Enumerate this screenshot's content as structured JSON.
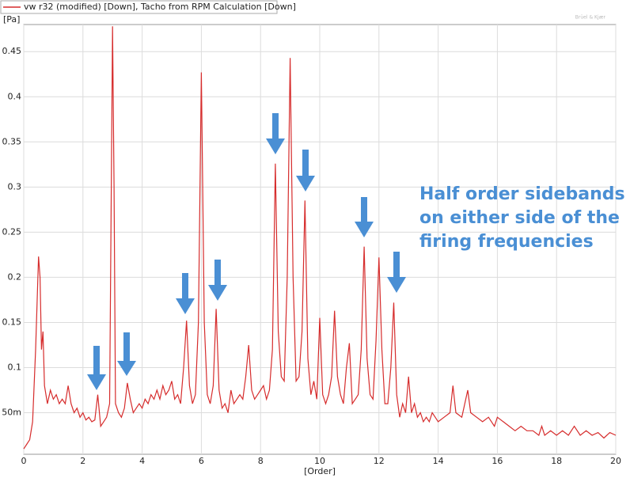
{
  "chart_data": {
    "type": "line",
    "legend_text": "vw r32 (modified) [Down], Tacho from RPM Calculation [Down]",
    "watermark": "Brüel & Kjær",
    "y_unit": "[Pa]",
    "x_label": "[Order]",
    "annotation": [
      "Half order sidebands",
      "on either side of the",
      "firing frequencies"
    ],
    "grid": true,
    "xlim": [
      0,
      20
    ],
    "xticks": [
      0,
      2,
      4,
      6,
      8,
      10,
      12,
      14,
      16,
      18,
      20
    ],
    "ylim": [
      0.004,
      0.48
    ],
    "yticks": [
      {
        "value": 0.05,
        "label": "50m"
      },
      0.1,
      0.15,
      0.2,
      0.25,
      0.3,
      0.35,
      0.4,
      0.45
    ],
    "series": [
      {
        "name": "vw r32 (modified) [Down], Tacho from RPM Calculation [Down]",
        "color": "#d62c2c",
        "x": [
          0,
          0.1,
          0.2,
          0.3,
          0.4,
          0.5,
          0.55,
          0.6,
          0.65,
          0.7,
          0.8,
          0.9,
          1.0,
          1.1,
          1.2,
          1.3,
          1.4,
          1.5,
          1.6,
          1.7,
          1.8,
          1.9,
          2.0,
          2.1,
          2.2,
          2.3,
          2.4,
          2.5,
          2.6,
          2.7,
          2.8,
          2.9,
          3.0,
          3.05,
          3.1,
          3.2,
          3.3,
          3.4,
          3.5,
          3.6,
          3.7,
          3.8,
          3.9,
          4.0,
          4.1,
          4.2,
          4.3,
          4.4,
          4.5,
          4.6,
          4.7,
          4.8,
          4.9,
          5.0,
          5.1,
          5.2,
          5.3,
          5.4,
          5.5,
          5.6,
          5.7,
          5.8,
          5.9,
          6.0,
          6.1,
          6.2,
          6.3,
          6.4,
          6.5,
          6.6,
          6.7,
          6.8,
          6.9,
          7.0,
          7.1,
          7.2,
          7.3,
          7.4,
          7.5,
          7.6,
          7.7,
          7.8,
          7.9,
          8.0,
          8.1,
          8.2,
          8.3,
          8.4,
          8.5,
          8.6,
          8.7,
          8.8,
          8.9,
          9.0,
          9.1,
          9.2,
          9.3,
          9.4,
          9.5,
          9.6,
          9.7,
          9.8,
          9.9,
          10.0,
          10.1,
          10.2,
          10.3,
          10.4,
          10.5,
          10.6,
          10.7,
          10.8,
          10.9,
          11.0,
          11.1,
          11.2,
          11.3,
          11.4,
          11.5,
          11.6,
          11.7,
          11.8,
          11.9,
          12.0,
          12.1,
          12.2,
          12.3,
          12.4,
          12.5,
          12.6,
          12.7,
          12.8,
          12.9,
          13.0,
          13.1,
          13.2,
          13.3,
          13.4,
          13.5,
          13.6,
          13.7,
          13.8,
          13.9,
          14.0,
          14.2,
          14.4,
          14.5,
          14.6,
          14.8,
          15.0,
          15.1,
          15.3,
          15.5,
          15.7,
          15.9,
          16.0,
          16.2,
          16.4,
          16.6,
          16.8,
          17.0,
          17.2,
          17.4,
          17.5,
          17.6,
          17.8,
          18.0,
          18.2,
          18.4,
          18.6,
          18.8,
          19.0,
          19.2,
          19.4,
          19.6,
          19.8,
          20.0
        ],
        "values": [
          0.01,
          0.015,
          0.02,
          0.04,
          0.12,
          0.223,
          0.2,
          0.12,
          0.14,
          0.08,
          0.06,
          0.075,
          0.065,
          0.07,
          0.06,
          0.065,
          0.06,
          0.08,
          0.06,
          0.05,
          0.055,
          0.045,
          0.05,
          0.042,
          0.045,
          0.04,
          0.042,
          0.07,
          0.035,
          0.04,
          0.045,
          0.06,
          0.478,
          0.3,
          0.06,
          0.05,
          0.045,
          0.055,
          0.083,
          0.065,
          0.05,
          0.055,
          0.06,
          0.055,
          0.065,
          0.06,
          0.07,
          0.065,
          0.075,
          0.065,
          0.08,
          0.07,
          0.075,
          0.085,
          0.065,
          0.07,
          0.06,
          0.1,
          0.152,
          0.08,
          0.06,
          0.07,
          0.15,
          0.427,
          0.15,
          0.07,
          0.06,
          0.08,
          0.165,
          0.075,
          0.055,
          0.06,
          0.05,
          0.075,
          0.06,
          0.065,
          0.07,
          0.065,
          0.09,
          0.125,
          0.075,
          0.065,
          0.07,
          0.075,
          0.08,
          0.065,
          0.075,
          0.12,
          0.326,
          0.14,
          0.09,
          0.085,
          0.2,
          0.443,
          0.2,
          0.085,
          0.09,
          0.14,
          0.285,
          0.11,
          0.07,
          0.085,
          0.065,
          0.155,
          0.07,
          0.06,
          0.07,
          0.09,
          0.163,
          0.09,
          0.07,
          0.06,
          0.1,
          0.127,
          0.06,
          0.065,
          0.07,
          0.12,
          0.234,
          0.11,
          0.07,
          0.065,
          0.13,
          0.222,
          0.12,
          0.06,
          0.06,
          0.1,
          0.172,
          0.07,
          0.045,
          0.06,
          0.05,
          0.09,
          0.05,
          0.06,
          0.045,
          0.05,
          0.04,
          0.045,
          0.04,
          0.05,
          0.045,
          0.04,
          0.045,
          0.05,
          0.08,
          0.05,
          0.045,
          0.075,
          0.05,
          0.045,
          0.04,
          0.045,
          0.035,
          0.045,
          0.04,
          0.035,
          0.03,
          0.035,
          0.03,
          0.03,
          0.025,
          0.035,
          0.025,
          0.03,
          0.025,
          0.03,
          0.025,
          0.035,
          0.025,
          0.03,
          0.025,
          0.028,
          0.022,
          0.028,
          0.025
        ]
      }
    ]
  }
}
